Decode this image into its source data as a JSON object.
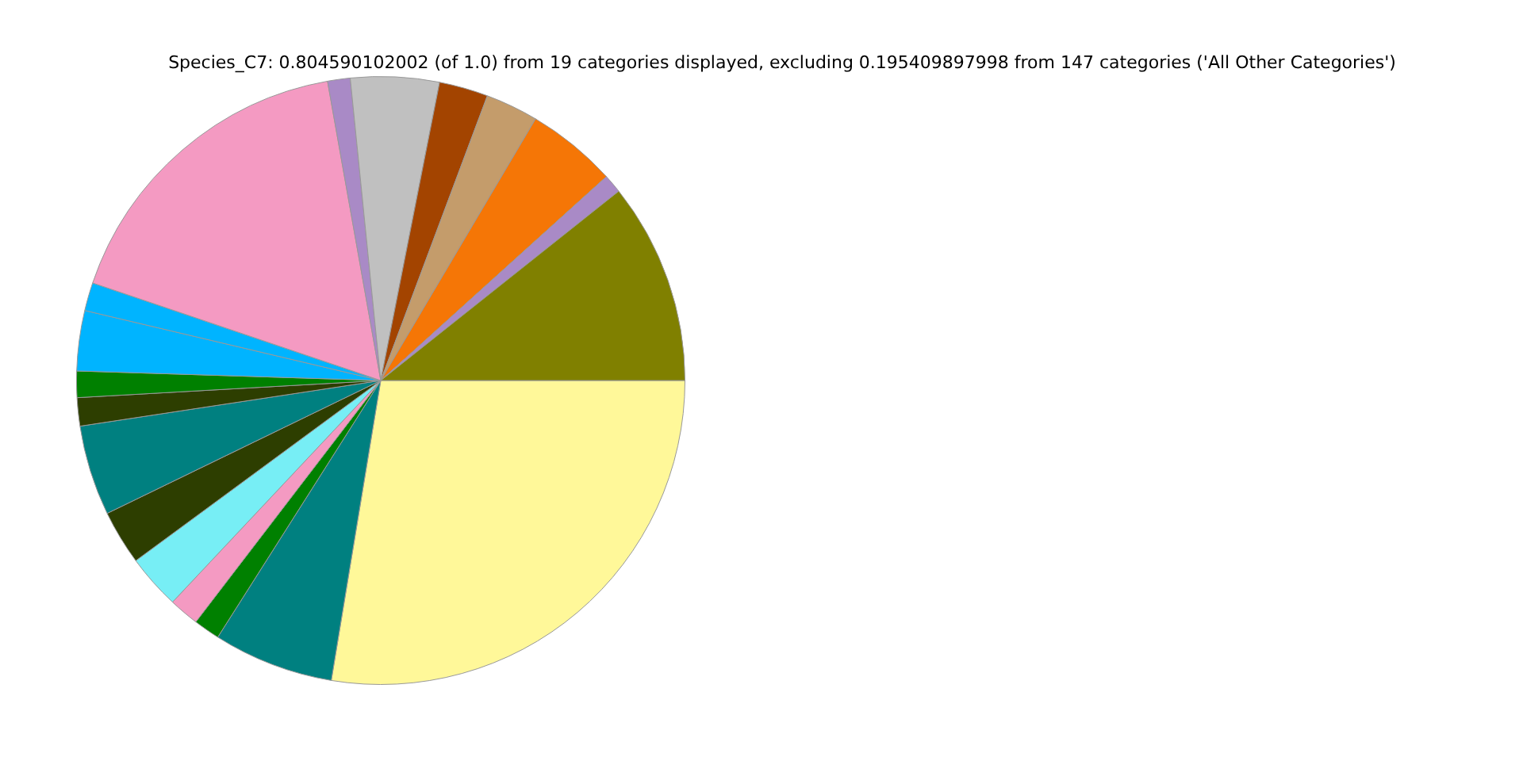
{
  "chart_data": {
    "type": "pie",
    "title": "Species_C7: 0.804590102002 (of 1.0) from 19 categories displayed, excluding 0.195409897998 from 147 categories ('All Other Categories')",
    "categories": [
      null,
      null,
      null,
      null,
      null,
      null,
      null,
      null,
      null,
      null,
      null,
      null,
      null,
      null,
      null,
      null,
      null,
      null,
      null
    ],
    "values": [
      27.6,
      6.4,
      1.4,
      1.6,
      2.9,
      2.9,
      4.8,
      1.5,
      1.4,
      3.2,
      1.5,
      17.0,
      1.2,
      4.7,
      2.6,
      2.8,
      4.8,
      1.0,
      10.7
    ],
    "colors": [
      "#fff899",
      "#008080",
      "#008000",
      "#f49ac2",
      "#77eef5",
      "#2d3e00",
      "#008080",
      "#2d3e00",
      "#008000",
      "#00b4ff",
      "#00b4ff",
      "#f49ac2",
      "#a98ac6",
      "#c0c0c0",
      "#a34400",
      "#c49c6b",
      "#f57606",
      "#a98ac6",
      "#808000"
    ],
    "legend": false
  }
}
